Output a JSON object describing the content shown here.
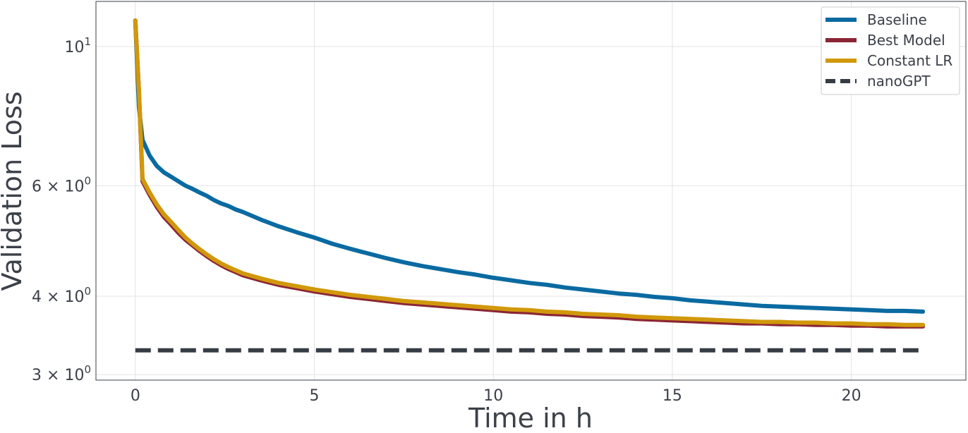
{
  "chart_data": {
    "type": "line",
    "xlabel": "Time in h",
    "ylabel": "Validation Loss",
    "yscale": "log",
    "xlim": [
      -1.1,
      23.2
    ],
    "ylim": [
      2.94,
      11.8
    ],
    "grid": true,
    "legend_position": "top-right",
    "x_ticks": [
      0,
      5,
      10,
      15,
      20
    ],
    "x_tick_labels": [
      "0",
      "5",
      "10",
      "15",
      "20"
    ],
    "y_ticks": [
      3,
      4,
      6,
      10
    ],
    "y_tick_labels": [
      {
        "base": "3 × 10",
        "exp": "0"
      },
      {
        "base": "4 × 10",
        "exp": "0"
      },
      {
        "base": "6 × 10",
        "exp": "0"
      },
      {
        "base": "10",
        "exp": "1"
      }
    ],
    "series": [
      {
        "name": "Baseline",
        "color": "#0a6aa1",
        "style": "solid",
        "points": [
          [
            0,
            11.0
          ],
          [
            0.1,
            8.0
          ],
          [
            0.2,
            7.1
          ],
          [
            0.4,
            6.7
          ],
          [
            0.6,
            6.45
          ],
          [
            0.8,
            6.3
          ],
          [
            1.0,
            6.2
          ],
          [
            1.2,
            6.1
          ],
          [
            1.4,
            6.0
          ],
          [
            1.6,
            5.93
          ],
          [
            1.8,
            5.85
          ],
          [
            2.0,
            5.78
          ],
          [
            2.2,
            5.69
          ],
          [
            2.4,
            5.62
          ],
          [
            2.6,
            5.57
          ],
          [
            2.8,
            5.5
          ],
          [
            3.0,
            5.45
          ],
          [
            3.5,
            5.3
          ],
          [
            4.0,
            5.17
          ],
          [
            4.5,
            5.06
          ],
          [
            5.0,
            4.96
          ],
          [
            5.5,
            4.85
          ],
          [
            6.0,
            4.76
          ],
          [
            6.5,
            4.68
          ],
          [
            7.0,
            4.6
          ],
          [
            7.5,
            4.53
          ],
          [
            8.0,
            4.47
          ],
          [
            8.5,
            4.42
          ],
          [
            9.0,
            4.37
          ],
          [
            9.5,
            4.33
          ],
          [
            10.0,
            4.28
          ],
          [
            10.5,
            4.24
          ],
          [
            11.0,
            4.2
          ],
          [
            11.5,
            4.17
          ],
          [
            12.0,
            4.13
          ],
          [
            12.5,
            4.1
          ],
          [
            13.0,
            4.07
          ],
          [
            13.5,
            4.04
          ],
          [
            14.0,
            4.02
          ],
          [
            14.5,
            3.99
          ],
          [
            15.0,
            3.97
          ],
          [
            15.5,
            3.94
          ],
          [
            16.0,
            3.92
          ],
          [
            16.5,
            3.9
          ],
          [
            17.0,
            3.88
          ],
          [
            17.5,
            3.86
          ],
          [
            18.0,
            3.85
          ],
          [
            18.5,
            3.84
          ],
          [
            19.0,
            3.83
          ],
          [
            19.5,
            3.82
          ],
          [
            20.0,
            3.81
          ],
          [
            20.5,
            3.8
          ],
          [
            21.0,
            3.79
          ],
          [
            21.5,
            3.79
          ],
          [
            22.0,
            3.78
          ]
        ]
      },
      {
        "name": "Best Model",
        "color": "#8b2535",
        "style": "solid",
        "points": [
          [
            0,
            11.0
          ],
          [
            0.1,
            8.5
          ],
          [
            0.2,
            6.1
          ],
          [
            0.4,
            5.8
          ],
          [
            0.6,
            5.55
          ],
          [
            0.8,
            5.35
          ],
          [
            1.0,
            5.2
          ],
          [
            1.2,
            5.05
          ],
          [
            1.4,
            4.92
          ],
          [
            1.6,
            4.82
          ],
          [
            1.8,
            4.72
          ],
          [
            2.0,
            4.63
          ],
          [
            2.2,
            4.55
          ],
          [
            2.4,
            4.48
          ],
          [
            2.6,
            4.42
          ],
          [
            2.8,
            4.37
          ],
          [
            3.0,
            4.32
          ],
          [
            3.5,
            4.24
          ],
          [
            4.0,
            4.17
          ],
          [
            4.5,
            4.12
          ],
          [
            5.0,
            4.07
          ],
          [
            5.5,
            4.03
          ],
          [
            6.0,
            3.99
          ],
          [
            6.5,
            3.96
          ],
          [
            7.0,
            3.93
          ],
          [
            7.5,
            3.9
          ],
          [
            8.0,
            3.88
          ],
          [
            8.5,
            3.86
          ],
          [
            9.0,
            3.84
          ],
          [
            9.5,
            3.82
          ],
          [
            10.0,
            3.8
          ],
          [
            10.5,
            3.78
          ],
          [
            11.0,
            3.77
          ],
          [
            11.5,
            3.75
          ],
          [
            12.0,
            3.74
          ],
          [
            12.5,
            3.72
          ],
          [
            13.0,
            3.71
          ],
          [
            13.5,
            3.7
          ],
          [
            14.0,
            3.68
          ],
          [
            14.5,
            3.67
          ],
          [
            15.0,
            3.66
          ],
          [
            15.5,
            3.65
          ],
          [
            16.0,
            3.64
          ],
          [
            16.5,
            3.63
          ],
          [
            17.0,
            3.62
          ],
          [
            17.5,
            3.62
          ],
          [
            18.0,
            3.61
          ],
          [
            18.5,
            3.61
          ],
          [
            19.0,
            3.6
          ],
          [
            19.5,
            3.6
          ],
          [
            20.0,
            3.59
          ],
          [
            20.5,
            3.59
          ],
          [
            21.0,
            3.58
          ],
          [
            21.5,
            3.58
          ],
          [
            22.0,
            3.58
          ]
        ]
      },
      {
        "name": "Constant LR",
        "color": "#d1980b",
        "style": "solid",
        "points": [
          [
            0,
            11.0
          ],
          [
            0.1,
            8.5
          ],
          [
            0.2,
            6.15
          ],
          [
            0.4,
            5.85
          ],
          [
            0.6,
            5.6
          ],
          [
            0.8,
            5.4
          ],
          [
            1.0,
            5.25
          ],
          [
            1.2,
            5.1
          ],
          [
            1.4,
            4.96
          ],
          [
            1.6,
            4.85
          ],
          [
            1.8,
            4.75
          ],
          [
            2.0,
            4.66
          ],
          [
            2.2,
            4.58
          ],
          [
            2.4,
            4.51
          ],
          [
            2.6,
            4.45
          ],
          [
            2.8,
            4.4
          ],
          [
            3.0,
            4.35
          ],
          [
            3.5,
            4.27
          ],
          [
            4.0,
            4.2
          ],
          [
            4.5,
            4.15
          ],
          [
            5.0,
            4.1
          ],
          [
            5.5,
            4.06
          ],
          [
            6.0,
            4.02
          ],
          [
            6.5,
            3.99
          ],
          [
            7.0,
            3.96
          ],
          [
            7.5,
            3.93
          ],
          [
            8.0,
            3.91
          ],
          [
            8.5,
            3.89
          ],
          [
            9.0,
            3.87
          ],
          [
            9.5,
            3.85
          ],
          [
            10.0,
            3.83
          ],
          [
            10.5,
            3.81
          ],
          [
            11.0,
            3.8
          ],
          [
            11.5,
            3.78
          ],
          [
            12.0,
            3.77
          ],
          [
            12.5,
            3.75
          ],
          [
            13.0,
            3.74
          ],
          [
            13.5,
            3.73
          ],
          [
            14.0,
            3.71
          ],
          [
            14.5,
            3.7
          ],
          [
            15.0,
            3.69
          ],
          [
            15.5,
            3.68
          ],
          [
            16.0,
            3.67
          ],
          [
            16.5,
            3.66
          ],
          [
            17.0,
            3.65
          ],
          [
            17.5,
            3.64
          ],
          [
            18.0,
            3.64
          ],
          [
            18.5,
            3.63
          ],
          [
            19.0,
            3.63
          ],
          [
            19.5,
            3.62
          ],
          [
            20.0,
            3.62
          ],
          [
            20.5,
            3.61
          ],
          [
            21.0,
            3.61
          ],
          [
            21.5,
            3.6
          ],
          [
            22.0,
            3.6
          ]
        ]
      },
      {
        "name": "nanoGPT",
        "color": "#363d45",
        "style": "dashed",
        "points": [
          [
            0,
            3.28
          ],
          [
            22.0,
            3.28
          ]
        ]
      }
    ]
  }
}
